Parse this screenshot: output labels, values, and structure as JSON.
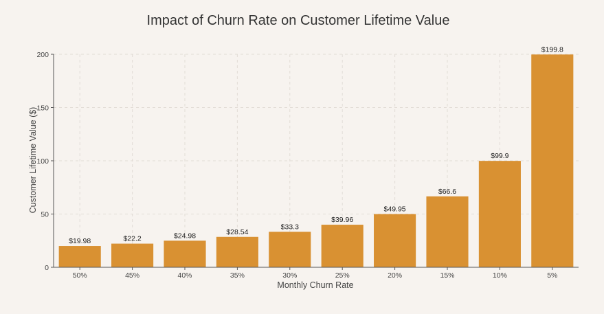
{
  "colors": {
    "background": "#f7f3ef",
    "bar": "#d99132"
  },
  "chart_data": {
    "type": "bar",
    "title": "Impact of Churn Rate on Customer Lifetime Value",
    "xlabel": "Monthly Churn Rate",
    "ylabel": "Customer Lifetime Value ($)",
    "categories": [
      "50%",
      "45%",
      "40%",
      "35%",
      "30%",
      "25%",
      "20%",
      "15%",
      "10%",
      "5%"
    ],
    "values": [
      19.98,
      22.2,
      24.98,
      28.54,
      33.3,
      39.96,
      49.95,
      66.6,
      99.9,
      199.8
    ],
    "value_labels": [
      "$19.98",
      "$22.2",
      "$24.98",
      "$28.54",
      "$33.3",
      "$39.96",
      "$49.95",
      "$66.6",
      "$99.9",
      "$199.8"
    ],
    "ylim": [
      0,
      200
    ],
    "yticks": [
      0,
      50,
      100,
      150,
      200
    ],
    "grid": true,
    "legend": "none"
  }
}
